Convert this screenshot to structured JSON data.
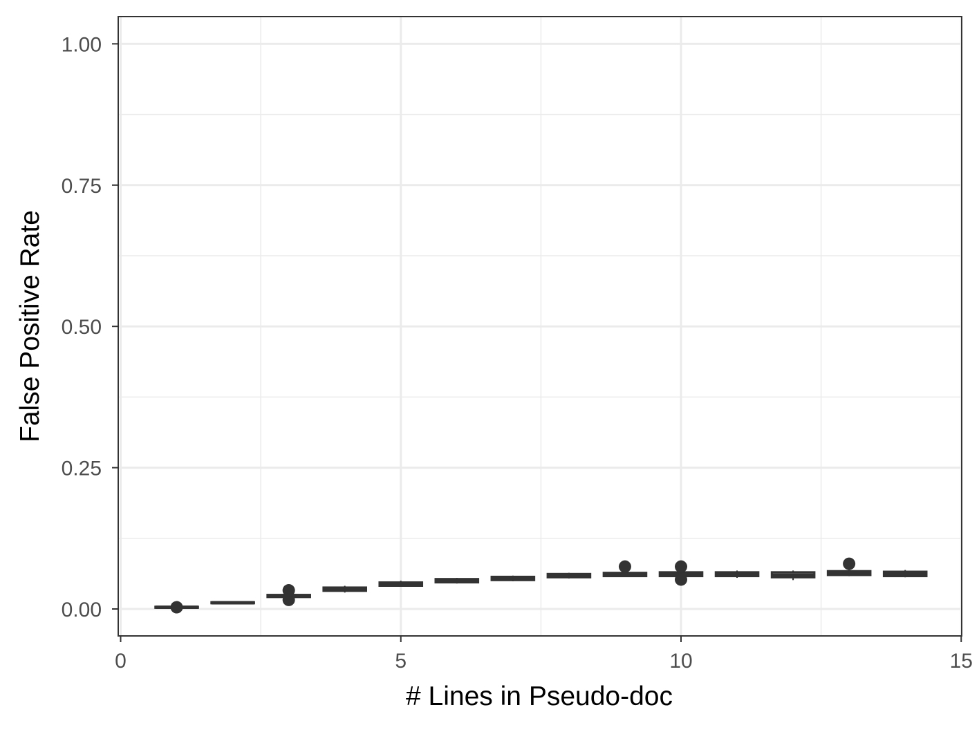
{
  "chart_data": {
    "type": "boxplot",
    "title": "",
    "xlabel": "# Lines in Pseudo-doc",
    "ylabel": "False Positive Rate",
    "xlim": [
      0,
      15
    ],
    "ylim": [
      0,
      1
    ],
    "x_ticks": [
      "0",
      "5",
      "10",
      "15"
    ],
    "y_ticks": [
      "0.00",
      "0.25",
      "0.50",
      "0.75",
      "1.00"
    ],
    "grid": true,
    "legend": "none",
    "box_color": "#333333",
    "series": [
      {
        "boxes": [
          {
            "x": 1,
            "min": 0.001,
            "q1": 0.002,
            "median": 0.003,
            "q3": 0.004,
            "max": 0.005,
            "outliers": [
              0.003
            ]
          },
          {
            "x": 2,
            "min": 0.009,
            "q1": 0.01,
            "median": 0.011,
            "q3": 0.012,
            "max": 0.013,
            "outliers": []
          },
          {
            "x": 3,
            "min": 0.02,
            "q1": 0.021,
            "median": 0.023,
            "q3": 0.025,
            "max": 0.027,
            "outliers": [
              0.016,
              0.033
            ]
          },
          {
            "x": 4,
            "min": 0.029,
            "q1": 0.032,
            "median": 0.035,
            "q3": 0.038,
            "max": 0.041,
            "outliers": []
          },
          {
            "x": 5,
            "min": 0.04,
            "q1": 0.041,
            "median": 0.044,
            "q3": 0.047,
            "max": 0.05,
            "outliers": []
          },
          {
            "x": 6,
            "min": 0.045,
            "q1": 0.047,
            "median": 0.05,
            "q3": 0.053,
            "max": 0.055,
            "outliers": []
          },
          {
            "x": 7,
            "min": 0.049,
            "q1": 0.051,
            "median": 0.054,
            "q3": 0.057,
            "max": 0.059,
            "outliers": []
          },
          {
            "x": 8,
            "min": 0.054,
            "q1": 0.056,
            "median": 0.059,
            "q3": 0.062,
            "max": 0.064,
            "outliers": []
          },
          {
            "x": 9,
            "min": 0.057,
            "q1": 0.058,
            "median": 0.061,
            "q3": 0.064,
            "max": 0.066,
            "outliers": [
              0.075
            ]
          },
          {
            "x": 10,
            "min": 0.057,
            "q1": 0.058,
            "median": 0.061,
            "q3": 0.065,
            "max": 0.067,
            "outliers": [
              0.052,
              0.075
            ]
          },
          {
            "x": 11,
            "min": 0.055,
            "q1": 0.058,
            "median": 0.061,
            "q3": 0.065,
            "max": 0.068,
            "outliers": []
          },
          {
            "x": 12,
            "min": 0.051,
            "q1": 0.056,
            "median": 0.06,
            "q3": 0.065,
            "max": 0.068,
            "outliers": []
          },
          {
            "x": 13,
            "min": 0.058,
            "q1": 0.06,
            "median": 0.063,
            "q3": 0.067,
            "max": 0.069,
            "outliers": [
              0.08
            ]
          },
          {
            "x": 14,
            "min": 0.056,
            "q1": 0.058,
            "median": 0.062,
            "q3": 0.066,
            "max": 0.069,
            "outliers": []
          }
        ]
      }
    ]
  }
}
